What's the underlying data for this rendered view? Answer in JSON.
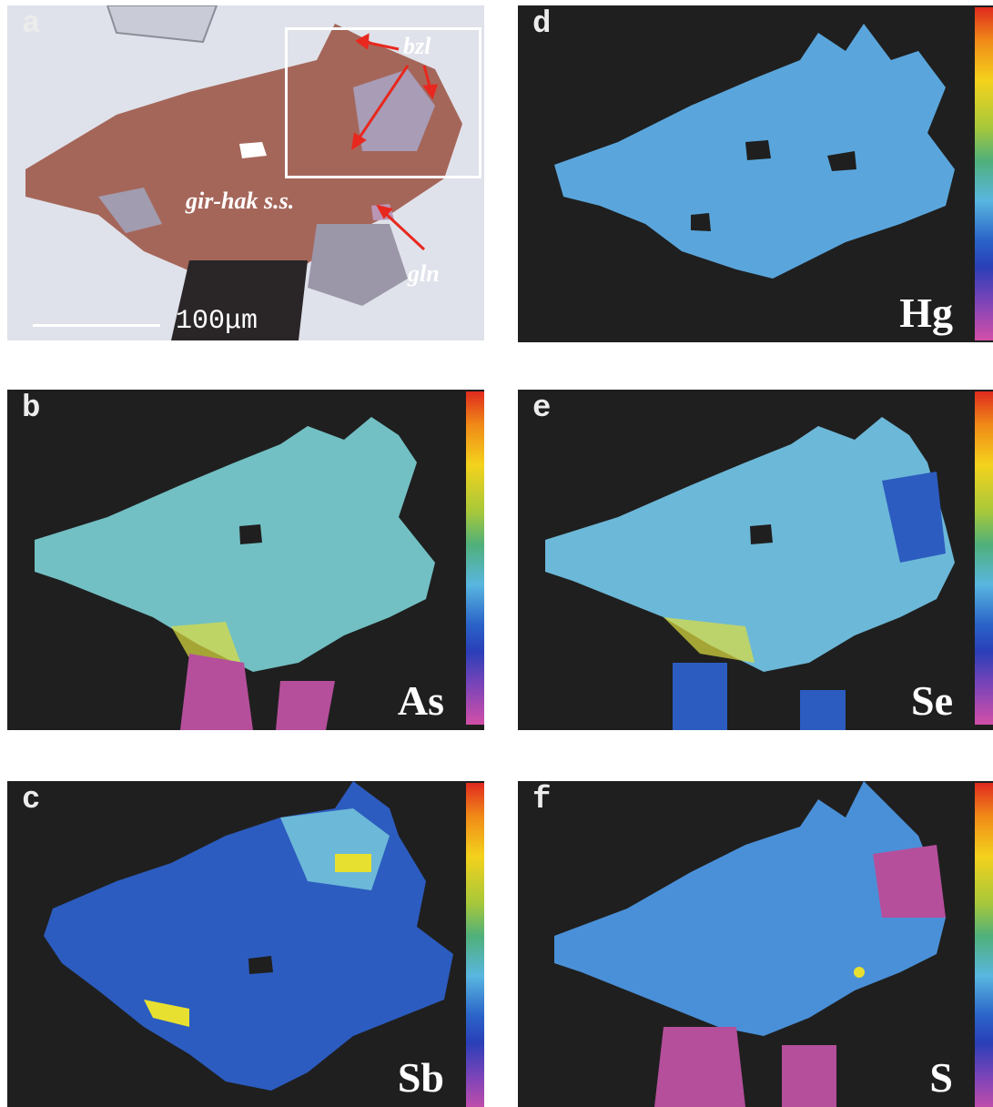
{
  "panels": {
    "a": {
      "letter": "a",
      "labels": {
        "bzl": "bzl",
        "gir_hak": "gir-hak s.s.",
        "gln": "gln"
      },
      "scale": "100μm"
    },
    "b": {
      "letter": "b",
      "element": "As"
    },
    "c": {
      "letter": "c",
      "element": "Sb"
    },
    "d": {
      "letter": "d",
      "element": "Hg"
    },
    "e": {
      "letter": "e",
      "element": "Se"
    },
    "f": {
      "letter": "f",
      "element": "S"
    }
  },
  "colors": {
    "background_map": "#1f1f1f",
    "grain_mineral": "#a5665a",
    "map_blue": "#5aa6dc",
    "map_dark_blue": "#2c5cc0",
    "map_yellow": "#e8e030",
    "map_magenta": "#c04fa8",
    "annotation_arrow": "#e8281e"
  }
}
